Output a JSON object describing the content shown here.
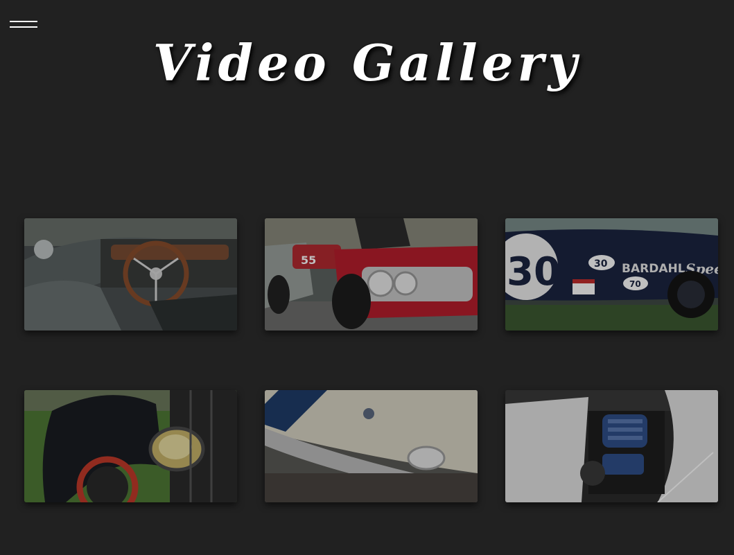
{
  "header": {
    "title": "Video Gallery",
    "menu_icon": "hamburger-menu-icon"
  },
  "gallery": {
    "items": [
      {
        "name": "roadster-interior-steering-wheel"
      },
      {
        "name": "red-pontiac-front-headlights"
      },
      {
        "name": "blue-race-car-bardahl"
      },
      {
        "name": "vintage-fender-headlamp"
      },
      {
        "name": "white-mustang-hood-stripes"
      },
      {
        "name": "white-cobra-engine-bay"
      }
    ],
    "decals": {
      "tile3_number_big": "30",
      "tile3_number_small": "30",
      "tile3_brand": "BARDAHL",
      "tile3_script": "Spee",
      "tile3_number_low": "70",
      "tile2_plate": "55"
    }
  },
  "colors": {
    "background": "#212121",
    "title": "#ffffff"
  }
}
